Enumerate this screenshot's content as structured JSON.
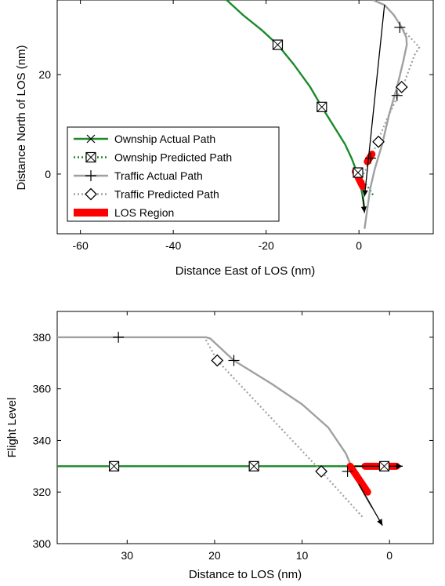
{
  "colors": {
    "ownship": "#1a8a2a",
    "traffic": "#a0a0a0",
    "los": "#ff0000",
    "axis": "#000000"
  },
  "chart_data": [
    {
      "type": "line",
      "xlabel": "Distance East of LOS (nm)",
      "ylabel": "Distance North of LOS (nm)",
      "xlim": [
        -65,
        16
      ],
      "ylim": [
        -12,
        35
      ],
      "xticks": [
        -60,
        -40,
        -20,
        0
      ],
      "yticks": [
        0,
        20
      ],
      "grid": false,
      "legend_position": "lower-left",
      "legend": [
        {
          "label": "Ownship Actual Path",
          "marker": "x",
          "style": "solid",
          "color": "ownship"
        },
        {
          "label": "Ownship Predicted Path",
          "marker": "square",
          "style": "dotted",
          "color": "ownship"
        },
        {
          "label": "Traffic Actual Path",
          "marker": "plus",
          "style": "solid",
          "color": "traffic"
        },
        {
          "label": "Traffic Predicted Path",
          "marker": "diamond",
          "style": "dotted",
          "color": "traffic"
        },
        {
          "label": "LOS Region",
          "marker": "patch",
          "style": "thick",
          "color": "los"
        }
      ],
      "series": [
        {
          "name": "Ownship Actual Path",
          "x": [
            -28.5,
            -25,
            -21,
            -17.5,
            -14,
            -10.5,
            -8,
            -5,
            -3,
            -1.5,
            -0.5,
            0.3,
            0.8,
            1.2
          ],
          "y": [
            35,
            32,
            29,
            26,
            22,
            17.5,
            13.5,
            9,
            6,
            3,
            0.5,
            -2,
            -4.5,
            -7
          ]
        },
        {
          "name": "Ownship Predicted Path",
          "x": [
            0,
            0.8,
            1.6,
            2.4,
            3.2
          ],
          "y": [
            0,
            -1.2,
            -2.2,
            -3.2,
            -4.5
          ]
        },
        {
          "name": "Traffic Actual Path",
          "x": [
            1.2,
            1.8,
            2.4,
            3.4,
            5,
            6.5,
            8.2,
            9.5,
            10.3,
            10.2,
            9.2,
            7.5,
            5.5,
            3
          ],
          "y": [
            -11,
            -7,
            -3,
            1,
            6,
            12,
            17.5,
            22.5,
            26,
            27.5,
            29.5,
            32,
            34,
            35
          ]
        },
        {
          "name": "Traffic Predicted Path",
          "x": [
            1,
            2.5,
            4,
            6,
            8.5,
            10,
            11,
            12,
            13,
            9
          ],
          "y": [
            0,
            3,
            6.5,
            11,
            16,
            19,
            21.5,
            24,
            25.5,
            29.5
          ]
        }
      ],
      "markers": [
        {
          "series": "Ownship",
          "x": -17.5,
          "y": 26
        },
        {
          "series": "Ownship",
          "x": -8,
          "y": 13.5
        },
        {
          "series": "Ownship",
          "x": -0.2,
          "y": 0.3
        },
        {
          "series": "Traffic",
          "x": 8.8,
          "y": 29.5
        },
        {
          "series": "Traffic",
          "x": 8.2,
          "y": 15.8
        },
        {
          "series": "Traffic",
          "x": 2.5,
          "y": 3.2
        },
        {
          "series": "Traffic Predicted",
          "x": 9.2,
          "y": 17.5
        },
        {
          "series": "Traffic Predicted",
          "x": 4.2,
          "y": 6.5
        }
      ],
      "arrows": [
        {
          "series": "Ownship",
          "x": 1.2,
          "y": -7.8
        },
        {
          "series": "Traffic",
          "x": 1.2,
          "y": -4.5
        }
      ],
      "los_region": [
        {
          "x": [
            -0.8,
            0.8
          ],
          "y": [
            0.5,
            -2.5
          ]
        },
        {
          "x": [
            1.8,
            2.8
          ],
          "y": [
            2.5,
            4
          ]
        }
      ]
    },
    {
      "type": "line",
      "xlabel": "Distance to LOS (nm)",
      "ylabel": "Flight Level",
      "xlim": [
        38,
        -5
      ],
      "ylim": [
        300,
        390
      ],
      "xticks": [
        30,
        20,
        10,
        0
      ],
      "yticks": [
        300,
        320,
        340,
        360,
        380
      ],
      "grid": false,
      "series": [
        {
          "name": "Ownship Actual Path",
          "x": [
            38,
            31.5,
            15.5,
            4,
            0
          ],
          "y": [
            330,
            330,
            330,
            330,
            330
          ]
        },
        {
          "name": "Ownship Predicted Path",
          "x": [
            31.5,
            0
          ],
          "y": [
            330,
            330
          ]
        },
        {
          "name": "Traffic Actual Path",
          "x": [
            38,
            21,
            20.5,
            17.8,
            13.5,
            10,
            7,
            5,
            3.5,
            2
          ],
          "y": [
            380,
            380,
            379.5,
            371,
            362,
            354,
            345,
            335,
            323,
            314
          ]
        },
        {
          "name": "Traffic Predicted Path",
          "x": [
            21,
            19.7,
            7.8,
            3
          ],
          "y": [
            379,
            371,
            328,
            310
          ]
        }
      ],
      "markers": [
        {
          "series": "Ownship",
          "x": 31.5,
          "y": 330
        },
        {
          "series": "Ownship",
          "x": 15.5,
          "y": 330
        },
        {
          "series": "Ownship",
          "x": 0.6,
          "y": 330
        },
        {
          "series": "Traffic",
          "x": 31,
          "y": 380
        },
        {
          "series": "Traffic",
          "x": 17.8,
          "y": 371
        },
        {
          "series": "Traffic",
          "x": 4.8,
          "y": 328
        },
        {
          "series": "Traffic Predicted",
          "x": 19.7,
          "y": 371
        },
        {
          "series": "Traffic Predicted",
          "x": 7.8,
          "y": 328
        }
      ],
      "arrows": [
        {
          "series": "Ownship",
          "x": -1.5,
          "y": 330
        },
        {
          "series": "Traffic",
          "x": 0.8,
          "y": 307
        }
      ],
      "los_region": [
        {
          "x": [
            4.5,
            2.5
          ],
          "y": [
            330,
            320
          ]
        },
        {
          "x": [
            2.8,
            -0.8
          ],
          "y": [
            330,
            330
          ]
        }
      ]
    }
  ]
}
